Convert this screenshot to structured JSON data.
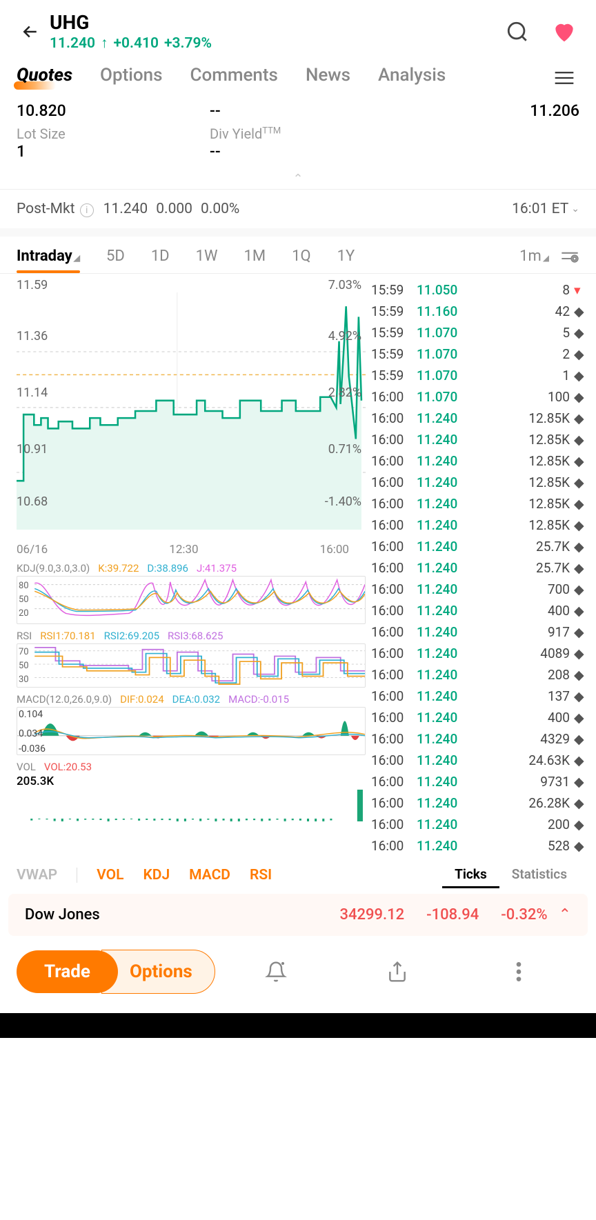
{
  "header": {
    "ticker": "UHG",
    "price": "11.240",
    "arrow": "↑",
    "change": "+0.410",
    "pct": "+3.79%",
    "price_color": "#00a77e",
    "heart_color": "#ff5077"
  },
  "tabs": [
    "Quotes",
    "Options",
    "Comments",
    "News",
    "Analysis"
  ],
  "active_tab": 0,
  "data_row1": {
    "left_val": "10.820",
    "mid_val": "--",
    "right_val": "11.206"
  },
  "data_row2": {
    "left_label": "Lot Size",
    "left_val": "1",
    "mid_label": "Div Yield",
    "mid_sup": "TTM",
    "mid_val": "--"
  },
  "postmkt": {
    "label": "Post-Mkt",
    "price": "11.240",
    "change": "0.000",
    "pct": "0.00%",
    "time": "16:01 ET"
  },
  "timeframes": [
    "Intraday",
    "5D",
    "1D",
    "1W",
    "1M",
    "1Q",
    "1Y",
    "1m"
  ],
  "active_tf": 0,
  "main_chart": {
    "y_ticks": [
      "11.59",
      "11.36",
      "11.14",
      "10.91",
      "10.68"
    ],
    "pct_ticks": [
      "7.03%",
      "4.92%",
      "2.82%",
      "0.71%",
      "-1.40%"
    ],
    "x_ticks": [
      "06/16",
      "12:30",
      "16:00"
    ],
    "line_color": "#00a77e",
    "area_color": "#e6f7f1",
    "prev_close_line": "#f0b850",
    "grid_color": "#d0d0d0",
    "points": [
      [
        0,
        270
      ],
      [
        10,
        270
      ],
      [
        10,
        175
      ],
      [
        25,
        175
      ],
      [
        25,
        190
      ],
      [
        35,
        190
      ],
      [
        35,
        180
      ],
      [
        45,
        180
      ],
      [
        45,
        195
      ],
      [
        60,
        195
      ],
      [
        60,
        185
      ],
      [
        80,
        185
      ],
      [
        80,
        195
      ],
      [
        105,
        195
      ],
      [
        105,
        180
      ],
      [
        120,
        180
      ],
      [
        120,
        190
      ],
      [
        145,
        190
      ],
      [
        145,
        180
      ],
      [
        170,
        180
      ],
      [
        170,
        170
      ],
      [
        200,
        170
      ],
      [
        200,
        155
      ],
      [
        225,
        155
      ],
      [
        225,
        175
      ],
      [
        258,
        175
      ],
      [
        258,
        155
      ],
      [
        270,
        155
      ],
      [
        270,
        170
      ],
      [
        295,
        170
      ],
      [
        295,
        180
      ],
      [
        320,
        180
      ],
      [
        320,
        155
      ],
      [
        350,
        155
      ],
      [
        350,
        170
      ],
      [
        380,
        170
      ],
      [
        380,
        155
      ],
      [
        400,
        155
      ],
      [
        400,
        170
      ],
      [
        435,
        170
      ],
      [
        435,
        150
      ],
      [
        450,
        150
      ],
      [
        458,
        165
      ],
      [
        462,
        70
      ],
      [
        464,
        160
      ],
      [
        470,
        60
      ],
      [
        472,
        20
      ],
      [
        476,
        120
      ],
      [
        480,
        155
      ],
      [
        486,
        210
      ],
      [
        490,
        35
      ],
      [
        494,
        155
      ]
    ],
    "baseline_y": 118
  },
  "kdj": {
    "title": "KDJ(9.0,3.0,3.0)",
    "k_label": "K:39.722",
    "k_color": "#f0a020",
    "d_label": "D:38.896",
    "d_color": "#30b0d0",
    "j_label": "J:41.375",
    "j_color": "#e060e0",
    "y_ticks": [
      "80",
      "50",
      "20"
    ]
  },
  "rsi": {
    "title": "RSI",
    "r1_label": "RSI1:70.181",
    "r1_color": "#f0a020",
    "r2_label": "RSI2:69.205",
    "r2_color": "#30b0d0",
    "r3_label": "RSI3:68.625",
    "r3_color": "#c070e0",
    "y_ticks": [
      "70",
      "50",
      "30"
    ]
  },
  "macd": {
    "title": "MACD(12.0,26.0,9.0)",
    "dif_label": "DIF:0.024",
    "dif_color": "#f0a020",
    "dea_label": "DEA:0.032",
    "dea_color": "#30b0d0",
    "macd_label": "MACD:-0.015",
    "macd_color": "#c070e0",
    "y_ticks": [
      "0.104",
      "0.034",
      "-0.036"
    ],
    "pos_color": "#1aa576",
    "neg_color": "#e04040"
  },
  "vol": {
    "title": "VOL",
    "val_label": "VOL:20.53",
    "val_color": "#f05050",
    "total": "205.3K"
  },
  "trades": [
    {
      "time": "15:59",
      "price": "11.050",
      "qty": "8",
      "marker": "▾",
      "marker_red": true
    },
    {
      "time": "15:59",
      "price": "11.160",
      "qty": "42",
      "marker": "◆"
    },
    {
      "time": "15:59",
      "price": "11.070",
      "qty": "5",
      "marker": "◆"
    },
    {
      "time": "15:59",
      "price": "11.070",
      "qty": "2",
      "marker": "◆"
    },
    {
      "time": "15:59",
      "price": "11.070",
      "qty": "1",
      "marker": "◆"
    },
    {
      "time": "16:00",
      "price": "11.070",
      "qty": "100",
      "marker": "◆"
    },
    {
      "time": "16:00",
      "price": "11.240",
      "qty": "12.85K",
      "marker": "◆"
    },
    {
      "time": "16:00",
      "price": "11.240",
      "qty": "12.85K",
      "marker": "◆"
    },
    {
      "time": "16:00",
      "price": "11.240",
      "qty": "12.85K",
      "marker": "◆"
    },
    {
      "time": "16:00",
      "price": "11.240",
      "qty": "12.85K",
      "marker": "◆"
    },
    {
      "time": "16:00",
      "price": "11.240",
      "qty": "12.85K",
      "marker": "◆"
    },
    {
      "time": "16:00",
      "price": "11.240",
      "qty": "12.85K",
      "marker": "◆"
    },
    {
      "time": "16:00",
      "price": "11.240",
      "qty": "25.7K",
      "marker": "◆"
    },
    {
      "time": "16:00",
      "price": "11.240",
      "qty": "25.7K",
      "marker": "◆"
    },
    {
      "time": "16:00",
      "price": "11.240",
      "qty": "700",
      "marker": "◆"
    },
    {
      "time": "16:00",
      "price": "11.240",
      "qty": "400",
      "marker": "◆"
    },
    {
      "time": "16:00",
      "price": "11.240",
      "qty": "917",
      "marker": "◆"
    },
    {
      "time": "16:00",
      "price": "11.240",
      "qty": "4089",
      "marker": "◆"
    },
    {
      "time": "16:00",
      "price": "11.240",
      "qty": "208",
      "marker": "◆"
    },
    {
      "time": "16:00",
      "price": "11.240",
      "qty": "137",
      "marker": "◆"
    },
    {
      "time": "16:00",
      "price": "11.240",
      "qty": "400",
      "marker": "◆"
    },
    {
      "time": "16:00",
      "price": "11.240",
      "qty": "4329",
      "marker": "◆"
    },
    {
      "time": "16:00",
      "price": "11.240",
      "qty": "24.63K",
      "marker": "◆"
    },
    {
      "time": "16:00",
      "price": "11.240",
      "qty": "9731",
      "marker": "◆"
    },
    {
      "time": "16:00",
      "price": "11.240",
      "qty": "26.28K",
      "marker": "◆"
    },
    {
      "time": "16:00",
      "price": "11.240",
      "qty": "200",
      "marker": "◆"
    },
    {
      "time": "16:00",
      "price": "11.240",
      "qty": "528",
      "marker": "◆"
    }
  ],
  "ind_tabs": [
    "VWAP",
    "VOL",
    "KDJ",
    "MACD",
    "RSI"
  ],
  "ticks_label": "Ticks",
  "stats_label": "Statistics",
  "index_bar": {
    "name": "Dow Jones",
    "value": "34299.12",
    "change": "-108.94",
    "pct": "-0.32%",
    "color": "#f05050"
  },
  "bottom": {
    "trade": "Trade",
    "options": "Options"
  }
}
